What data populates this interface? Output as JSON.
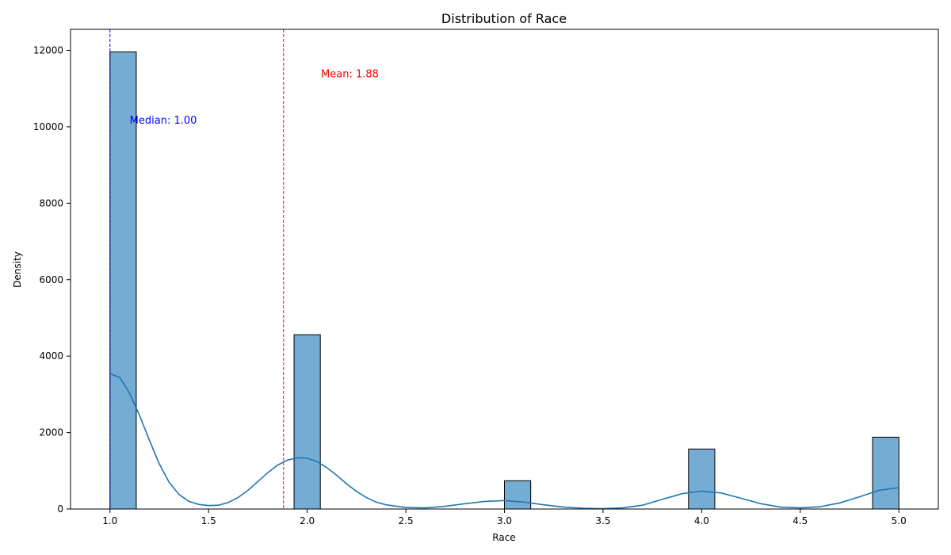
{
  "chart_data": {
    "type": "bar",
    "title": "Distribution of Race",
    "xlabel": "Race",
    "ylabel": "Density",
    "xlim": [
      0.8,
      5.2
    ],
    "ylim": [
      0,
      12550
    ],
    "xticks": [
      1.0,
      1.5,
      2.0,
      2.5,
      3.0,
      3.5,
      4.0,
      4.5,
      5.0
    ],
    "xtick_labels": [
      "1.0",
      "1.5",
      "2.0",
      "2.5",
      "3.0",
      "3.5",
      "4.0",
      "4.5",
      "5.0"
    ],
    "yticks": [
      0,
      2000,
      4000,
      6000,
      8000,
      10000,
      12000
    ],
    "ytick_labels": [
      "0",
      "2000",
      "4000",
      "6000",
      "8000",
      "10000",
      "12000"
    ],
    "bin_width": 0.1333,
    "bars": [
      {
        "x_start": 1.0,
        "value": 11960
      },
      {
        "x_start": 1.9333,
        "value": 4560
      },
      {
        "x_start": 3.0,
        "value": 740
      },
      {
        "x_start": 3.9333,
        "value": 1570
      },
      {
        "x_start": 4.8667,
        "value": 1880
      }
    ],
    "kde": {
      "x": [
        1.0,
        1.05,
        1.1,
        1.15,
        1.2,
        1.25,
        1.3,
        1.35,
        1.4,
        1.45,
        1.5,
        1.55,
        1.6,
        1.65,
        1.7,
        1.75,
        1.8,
        1.85,
        1.9,
        1.95,
        2.0,
        2.05,
        2.1,
        2.15,
        2.2,
        2.25,
        2.3,
        2.35,
        2.4,
        2.5,
        2.6,
        2.7,
        2.8,
        2.9,
        3.0,
        3.1,
        3.2,
        3.3,
        3.4,
        3.5,
        3.6,
        3.7,
        3.8,
        3.9,
        4.0,
        4.1,
        4.2,
        4.3,
        4.4,
        4.5,
        4.6,
        4.7,
        4.8,
        4.9,
        5.0
      ],
      "y": [
        3540,
        3440,
        3020,
        2450,
        1800,
        1180,
        700,
        380,
        200,
        120,
        90,
        100,
        170,
        300,
        490,
        720,
        950,
        1150,
        1280,
        1340,
        1330,
        1240,
        1080,
        880,
        660,
        460,
        300,
        180,
        110,
        40,
        30,
        70,
        140,
        200,
        220,
        180,
        110,
        50,
        20,
        10,
        30,
        100,
        250,
        400,
        470,
        420,
        280,
        140,
        50,
        30,
        60,
        160,
        320,
        490,
        560
      ]
    },
    "bar_color": "#75acd4",
    "bar_edge_color": "#000000",
    "kde_color": "#1f77b4",
    "annotations": [
      {
        "label": "Mean: 1.88",
        "x": 1.88,
        "color": "#ff0000",
        "text_x": 2.07,
        "text_y": 11300
      },
      {
        "label": "Median: 1.00",
        "x": 1.0,
        "color": "#0000ff",
        "text_x": 1.1,
        "text_y": 10080
      }
    ],
    "grid": false,
    "legend": "none"
  }
}
